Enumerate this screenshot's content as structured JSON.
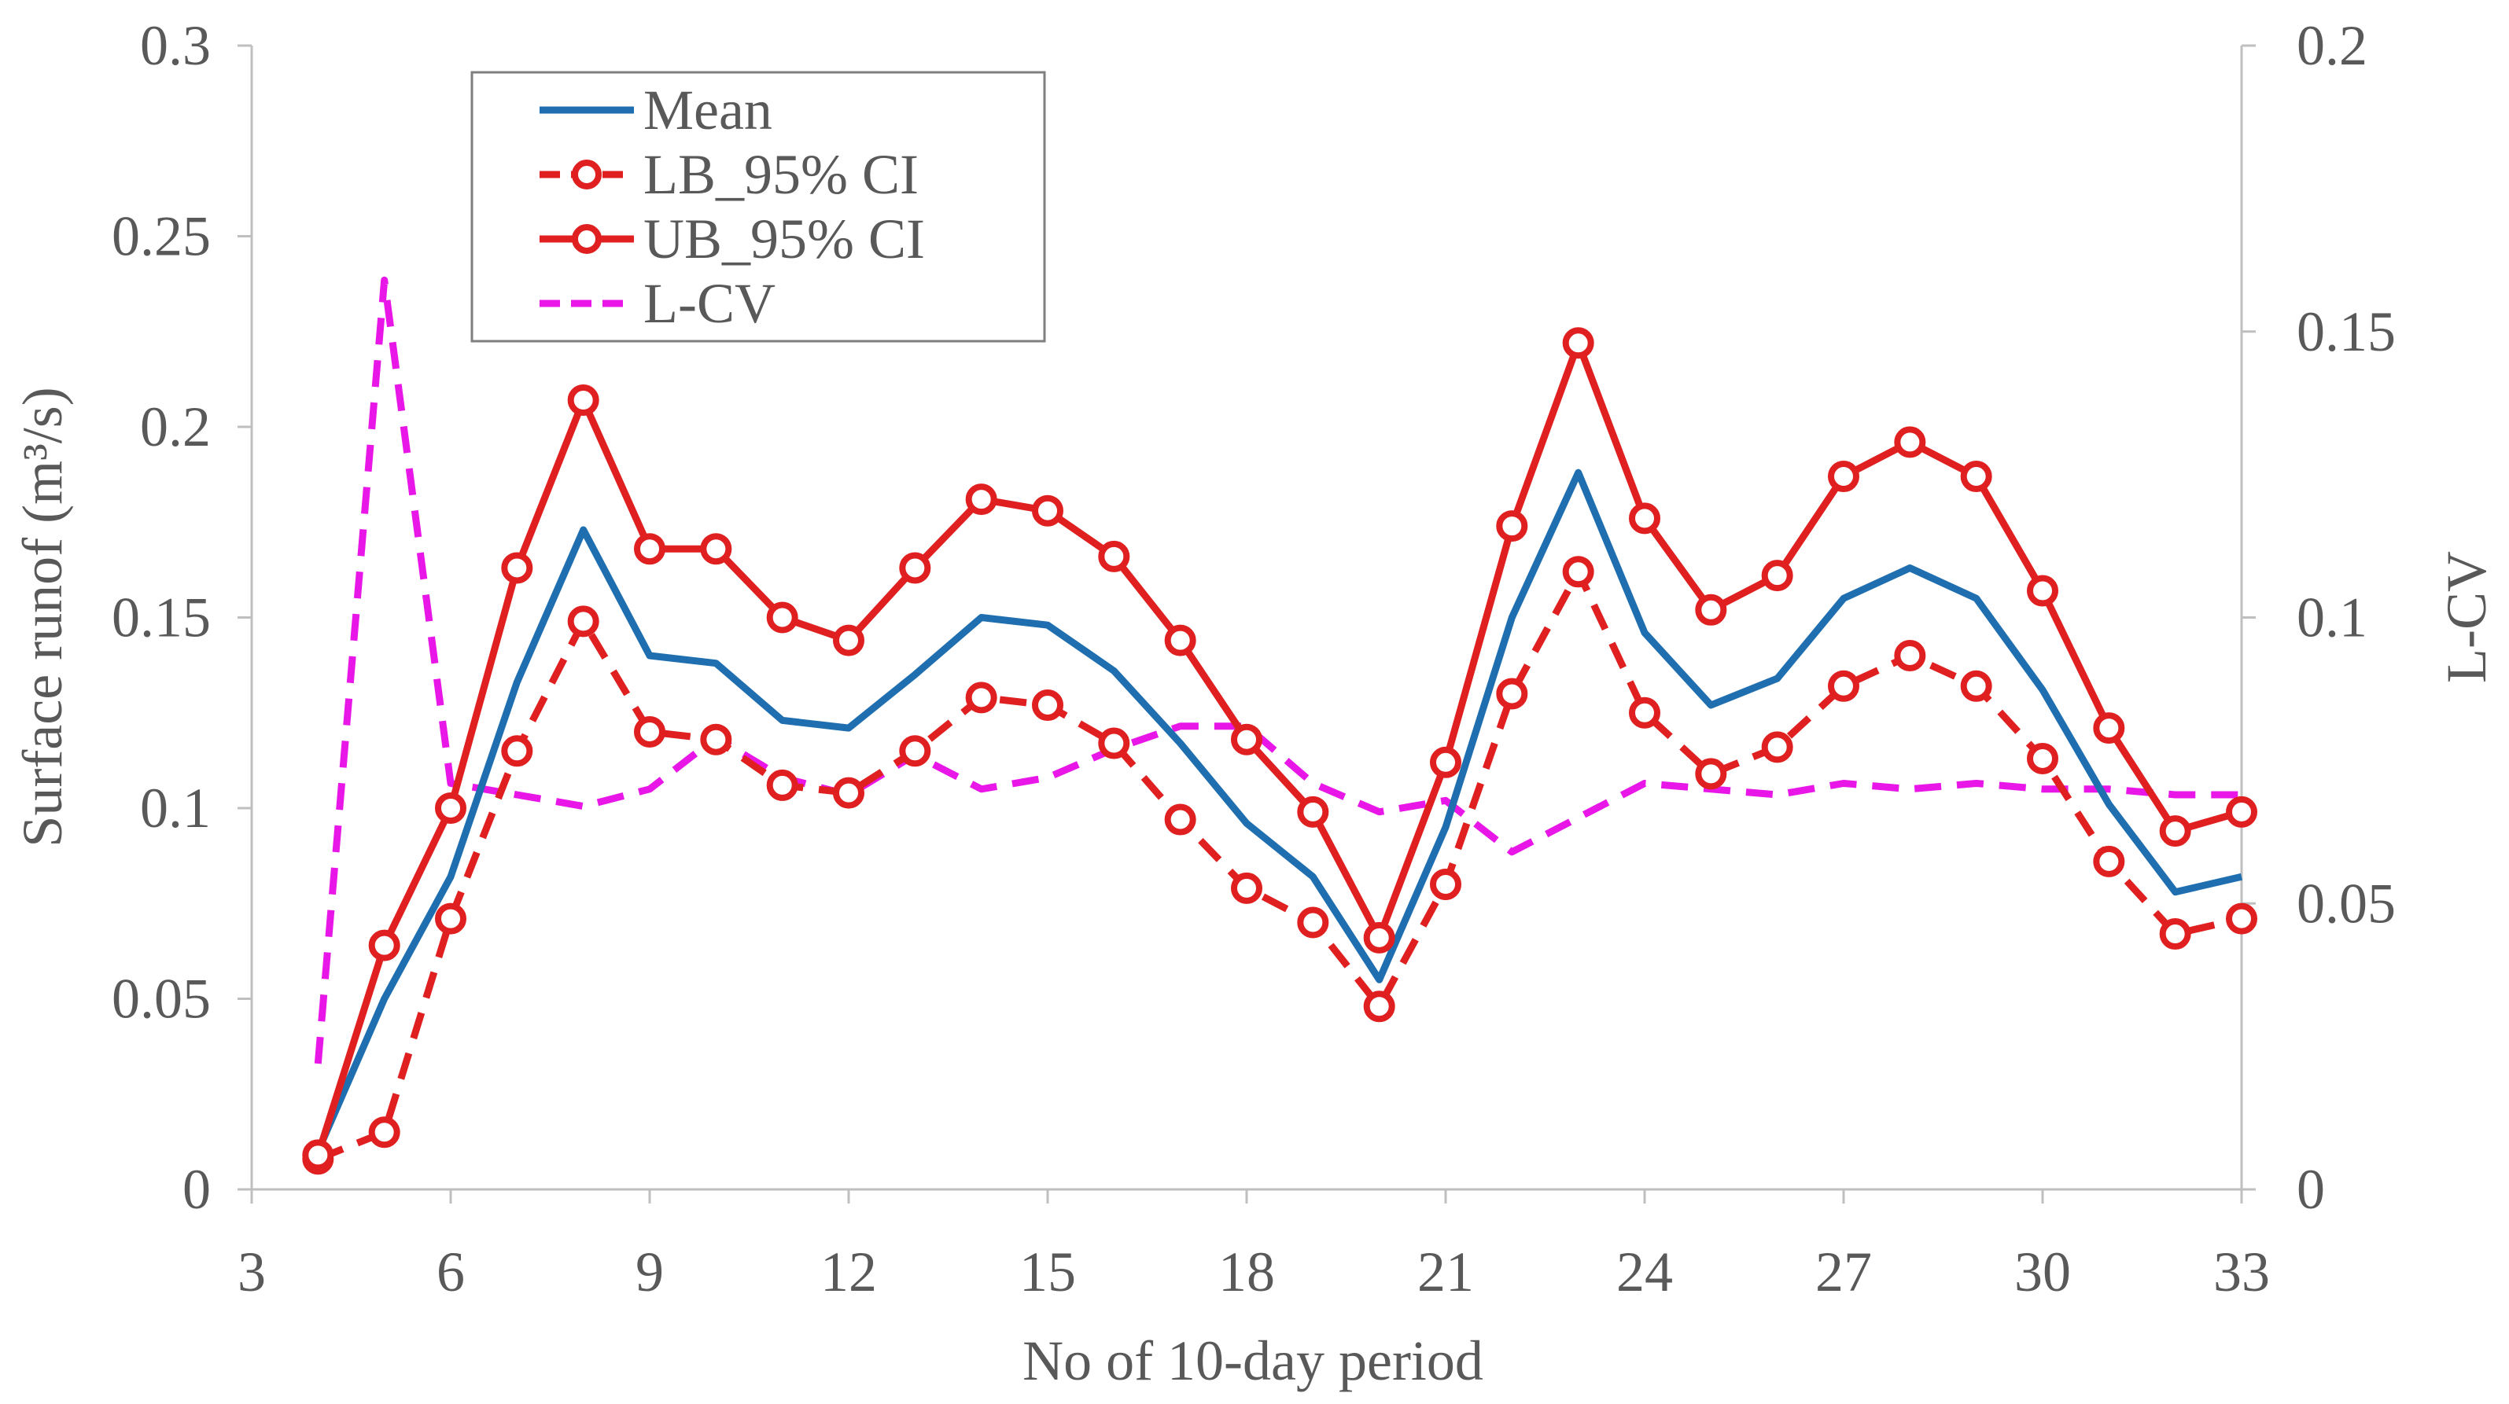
{
  "chart_data": {
    "type": "line",
    "title": "",
    "xlabel": "No of 10-day period",
    "ylabel": "Surface runof (m³/s)",
    "y2label": "L-CV",
    "xlim": [
      3,
      33
    ],
    "ylim": [
      0,
      0.3
    ],
    "y2lim": [
      0,
      0.2
    ],
    "xticks": [
      "3",
      "6",
      "9",
      "12",
      "15",
      "18",
      "21",
      "24",
      "27",
      "30",
      "33"
    ],
    "yticks": [
      "0",
      "0.05",
      "0.1",
      "0.15",
      "0.2",
      "0.25",
      "0.3"
    ],
    "y2ticks": [
      "0",
      "0.05",
      "0.1",
      "0.15",
      "0.2"
    ],
    "grid": false,
    "legend_position": "top-left",
    "x": [
      4,
      5,
      6,
      7,
      8,
      9,
      10,
      11,
      12,
      13,
      14,
      15,
      16,
      17,
      18,
      19,
      20,
      21,
      22,
      23,
      24,
      25,
      26,
      27,
      28,
      29,
      30,
      31,
      32,
      33
    ],
    "series": [
      {
        "name": "Mean",
        "axis": "left",
        "color": "#1f6fb0",
        "style": "solid",
        "marker": "none",
        "values": [
          0.01,
          0.05,
          0.082,
          0.133,
          0.173,
          0.14,
          0.138,
          0.123,
          0.121,
          0.135,
          0.15,
          0.148,
          0.136,
          0.117,
          0.096,
          0.082,
          0.055,
          0.095,
          0.15,
          0.188,
          0.146,
          0.127,
          0.134,
          0.155,
          0.163,
          0.155,
          0.131,
          0.101,
          0.078,
          0.082
        ]
      },
      {
        "name": "LB_95% CI",
        "axis": "left",
        "color": "#e02020",
        "style": "dashed",
        "marker": "circle",
        "values": [
          0.008,
          0.015,
          0.071,
          0.115,
          0.149,
          0.12,
          0.118,
          0.106,
          0.104,
          0.115,
          0.129,
          0.127,
          0.117,
          0.097,
          0.079,
          0.07,
          0.048,
          0.08,
          0.13,
          0.162,
          0.125,
          0.109,
          0.116,
          0.132,
          0.14,
          0.132,
          0.113,
          0.086,
          0.067,
          0.071
        ]
      },
      {
        "name": "UB_95% CI",
        "axis": "left",
        "color": "#e02020",
        "style": "solid",
        "marker": "circle",
        "values": [
          0.009,
          0.064,
          0.1,
          0.163,
          0.207,
          0.168,
          0.168,
          0.15,
          0.144,
          0.163,
          0.181,
          0.178,
          0.166,
          0.144,
          0.118,
          0.099,
          0.066,
          0.112,
          0.174,
          0.222,
          0.176,
          0.152,
          0.161,
          0.187,
          0.196,
          0.187,
          0.157,
          0.121,
          0.094,
          0.099
        ]
      },
      {
        "name": "L-CV",
        "axis": "right",
        "color": "#e817e8",
        "style": "dashed",
        "marker": "none",
        "values": [
          0.022,
          0.159,
          0.071,
          0.069,
          0.067,
          0.07,
          0.079,
          0.072,
          0.069,
          0.076,
          0.07,
          0.072,
          0.077,
          0.081,
          0.081,
          0.071,
          0.066,
          0.068,
          0.059,
          0.065,
          0.071,
          0.07,
          0.069,
          0.071,
          0.07,
          0.071,
          0.07,
          0.07,
          0.069,
          0.069
        ]
      }
    ]
  }
}
